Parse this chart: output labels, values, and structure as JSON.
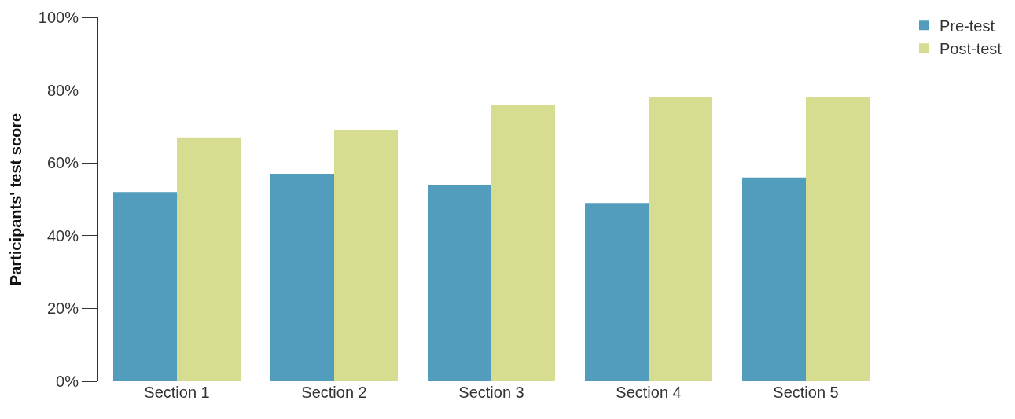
{
  "chart_data": {
    "type": "bar",
    "ylabel": "Participants' test score",
    "categories": [
      "Section 1",
      "Section 2",
      "Section 3",
      "Section 4",
      "Section 5"
    ],
    "series": [
      {
        "name": "Pre-test",
        "color": "#529dbd",
        "values": [
          52,
          57,
          54,
          49,
          56
        ]
      },
      {
        "name": "Post-test",
        "color": "#d6dc90",
        "values": [
          67,
          69,
          76,
          78,
          78
        ]
      }
    ],
    "ylim": [
      0,
      100
    ],
    "yticks": [
      {
        "value": 0,
        "label": "0%"
      },
      {
        "value": 20,
        "label": "20%"
      },
      {
        "value": 40,
        "label": "40%"
      },
      {
        "value": 60,
        "label": "60%"
      },
      {
        "value": 80,
        "label": "80%"
      },
      {
        "value": 100,
        "label": "100%"
      }
    ],
    "grid": false,
    "legend": "top right"
  }
}
